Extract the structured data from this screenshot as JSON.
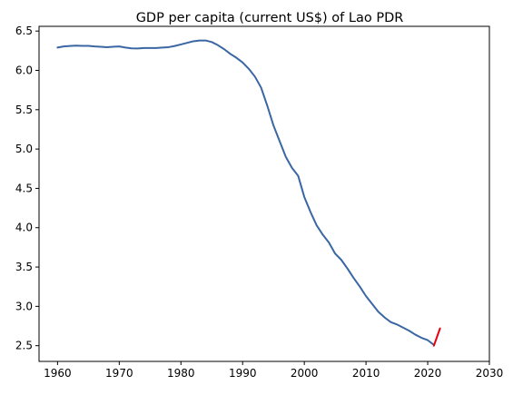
{
  "chart_data": {
    "type": "line",
    "title": "GDP per capita (current US$) of Lao PDR",
    "xlabel": "",
    "ylabel": "",
    "xlim": [
      1957,
      2030
    ],
    "ylim": [
      2.3,
      6.56
    ],
    "x_ticks": [
      1960,
      1970,
      1980,
      1990,
      2000,
      2010,
      2020,
      2030
    ],
    "y_ticks": [
      2.5,
      3.0,
      3.5,
      4.0,
      4.5,
      5.0,
      5.5,
      6.0,
      6.5
    ],
    "grid": false,
    "legend": "none",
    "series": [
      {
        "color": "#3a67a3",
        "x": [
          1960,
          1961,
          1962,
          1963,
          1964,
          1965,
          1966,
          1967,
          1968,
          1969,
          1970,
          1971,
          1972,
          1973,
          1974,
          1975,
          1976,
          1977,
          1978,
          1979,
          1980,
          1981,
          1982,
          1983,
          1984,
          1985,
          1986,
          1987,
          1988,
          1989,
          1990,
          1991,
          1992,
          1993,
          1994,
          1995,
          1996,
          1997,
          1998,
          1999,
          2000,
          2001,
          2002,
          2003,
          2004,
          2005,
          2006,
          2007,
          2008,
          2009,
          2010,
          2011,
          2012,
          2013,
          2014,
          2015,
          2016,
          2017,
          2018,
          2019,
          2020,
          2021
        ],
        "y": [
          6.29,
          6.305,
          6.31,
          6.315,
          6.312,
          6.312,
          6.305,
          6.3,
          6.295,
          6.3,
          6.305,
          6.29,
          6.28,
          6.278,
          6.285,
          6.285,
          6.285,
          6.29,
          6.295,
          6.31,
          6.33,
          6.35,
          6.37,
          6.38,
          6.38,
          6.36,
          6.32,
          6.27,
          6.21,
          6.16,
          6.1,
          6.02,
          5.92,
          5.78,
          5.55,
          5.3,
          5.1,
          4.9,
          4.76,
          4.66,
          4.39,
          4.2,
          4.03,
          3.91,
          3.81,
          3.67,
          3.59,
          3.48,
          3.36,
          3.25,
          3.13,
          3.03,
          2.93,
          2.86,
          2.8,
          2.77,
          2.73,
          2.69,
          2.64,
          2.6,
          2.57,
          2.51
        ]
      },
      {
        "color": "#e8000b",
        "x": [
          2021,
          2022
        ],
        "y": [
          2.5,
          2.72
        ]
      }
    ]
  }
}
